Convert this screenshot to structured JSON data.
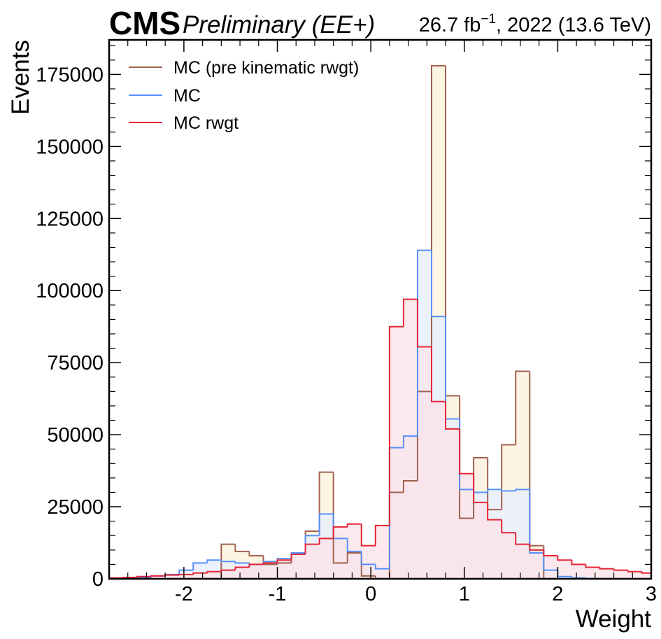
{
  "header": {
    "experiment": "CMS",
    "status": "Preliminary (EE+)",
    "luminosity": "26.7 fb",
    "lumi_exponent": "−1",
    "lumi_suffix": ", 2022 (13.6 TeV)"
  },
  "chart_data": {
    "type": "histogram",
    "xlabel": "Weight",
    "ylabel": "Events",
    "xlim": [
      -2.8,
      3.0
    ],
    "ylim": [
      0,
      187000
    ],
    "x_tick_labels": [
      "-2",
      "-1",
      "0",
      "1",
      "2",
      "3"
    ],
    "x_tick_values": [
      -2,
      -1,
      0,
      1,
      2,
      3
    ],
    "y_tick_labels": [
      "0",
      "25000",
      "50000",
      "75000",
      "100000",
      "125000",
      "150000",
      "175000"
    ],
    "y_tick_values": [
      0,
      25000,
      50000,
      75000,
      100000,
      125000,
      150000,
      175000
    ],
    "legend_position": "top-left",
    "bin_edges": [
      -2.8,
      -2.65,
      -2.5,
      -2.35,
      -2.2,
      -2.05,
      -1.9,
      -1.75,
      -1.6,
      -1.45,
      -1.3,
      -1.15,
      -1.0,
      -0.85,
      -0.7,
      -0.55,
      -0.4,
      -0.25,
      -0.1,
      0.05,
      0.2,
      0.35,
      0.5,
      0.65,
      0.8,
      0.95,
      1.1,
      1.25,
      1.4,
      1.55,
      1.7,
      1.85,
      2.0,
      2.15,
      2.3,
      2.45,
      2.6,
      2.75,
      2.9,
      3.0
    ],
    "series": [
      {
        "name": "MC (pre kinematic rwgt)",
        "color": "#a0624e",
        "fill": "#fdf1dc",
        "values": [
          0,
          0,
          0,
          0,
          0,
          0,
          0,
          0,
          12000,
          9500,
          8000,
          5000,
          5500,
          9000,
          16500,
          37000,
          5500,
          9000,
          1000,
          0,
          30000,
          34000,
          65000,
          178000,
          63500,
          21000,
          42000,
          24000,
          46500,
          72000,
          11500,
          0,
          0,
          0,
          0,
          0,
          0,
          0,
          0
        ]
      },
      {
        "name": "MC",
        "color": "#5790fc",
        "fill": "#e7effc",
        "values": [
          100,
          300,
          500,
          1000,
          1500,
          3000,
          5500,
          6500,
          6000,
          5500,
          5000,
          6000,
          7000,
          9000,
          15000,
          22500,
          14000,
          9500,
          5000,
          3500,
          45500,
          49500,
          114000,
          91000,
          55500,
          31000,
          30000,
          31000,
          30500,
          31000,
          9000,
          3000,
          800,
          300,
          100,
          50,
          0,
          0,
          0
        ]
      },
      {
        "name": "MC rwgt",
        "color": "#e42536",
        "fill": "#fbe4e8",
        "values": [
          300,
          500,
          800,
          1000,
          1300,
          1500,
          2000,
          2500,
          3000,
          4000,
          5000,
          5500,
          6500,
          8500,
          12000,
          14000,
          18000,
          19000,
          11500,
          18500,
          87500,
          97000,
          80500,
          61500,
          52000,
          36500,
          26500,
          20500,
          16000,
          12000,
          10000,
          8000,
          6500,
          5000,
          4000,
          3500,
          3000,
          2500,
          2000
        ]
      }
    ]
  }
}
